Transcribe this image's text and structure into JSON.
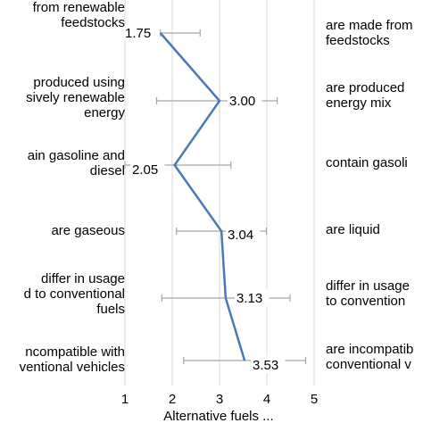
{
  "chart_data": {
    "type": "line",
    "xlabel": "Alternative fuels ...",
    "xlim": [
      1,
      5
    ],
    "x_ticks": [
      "1",
      "2",
      "3",
      "4",
      "5"
    ],
    "grid": true,
    "left_labels": [
      "from renewable\nfeedstocks",
      "produced using\nsively renewable\nenergy",
      "ain gasoline and\ndiesel",
      "are gaseous",
      "differ in usage\nd to conventional\nfuels",
      "ncompatible with\nventional vehicles"
    ],
    "right_labels": [
      "are made from\nfeedstocks",
      "are produced\nenergy mix",
      "contain gasoli",
      "are liquid",
      "differ in usage\nto convention",
      "are incompatib\nconventional v"
    ],
    "series": [
      {
        "values": [
          1.75,
          3.0,
          2.05,
          3.04,
          3.13,
          3.53
        ],
        "value_labels": [
          "1.75",
          "3.00",
          "2.05",
          "3.04",
          "3.13",
          "3.53"
        ],
        "err_low": [
          1.75,
          1.67,
          1.0,
          2.09,
          1.78,
          2.24
        ],
        "err_high": [
          2.59,
          4.22,
          3.24,
          3.99,
          4.49,
          4.82
        ],
        "color": "#4a7ab5"
      }
    ]
  }
}
